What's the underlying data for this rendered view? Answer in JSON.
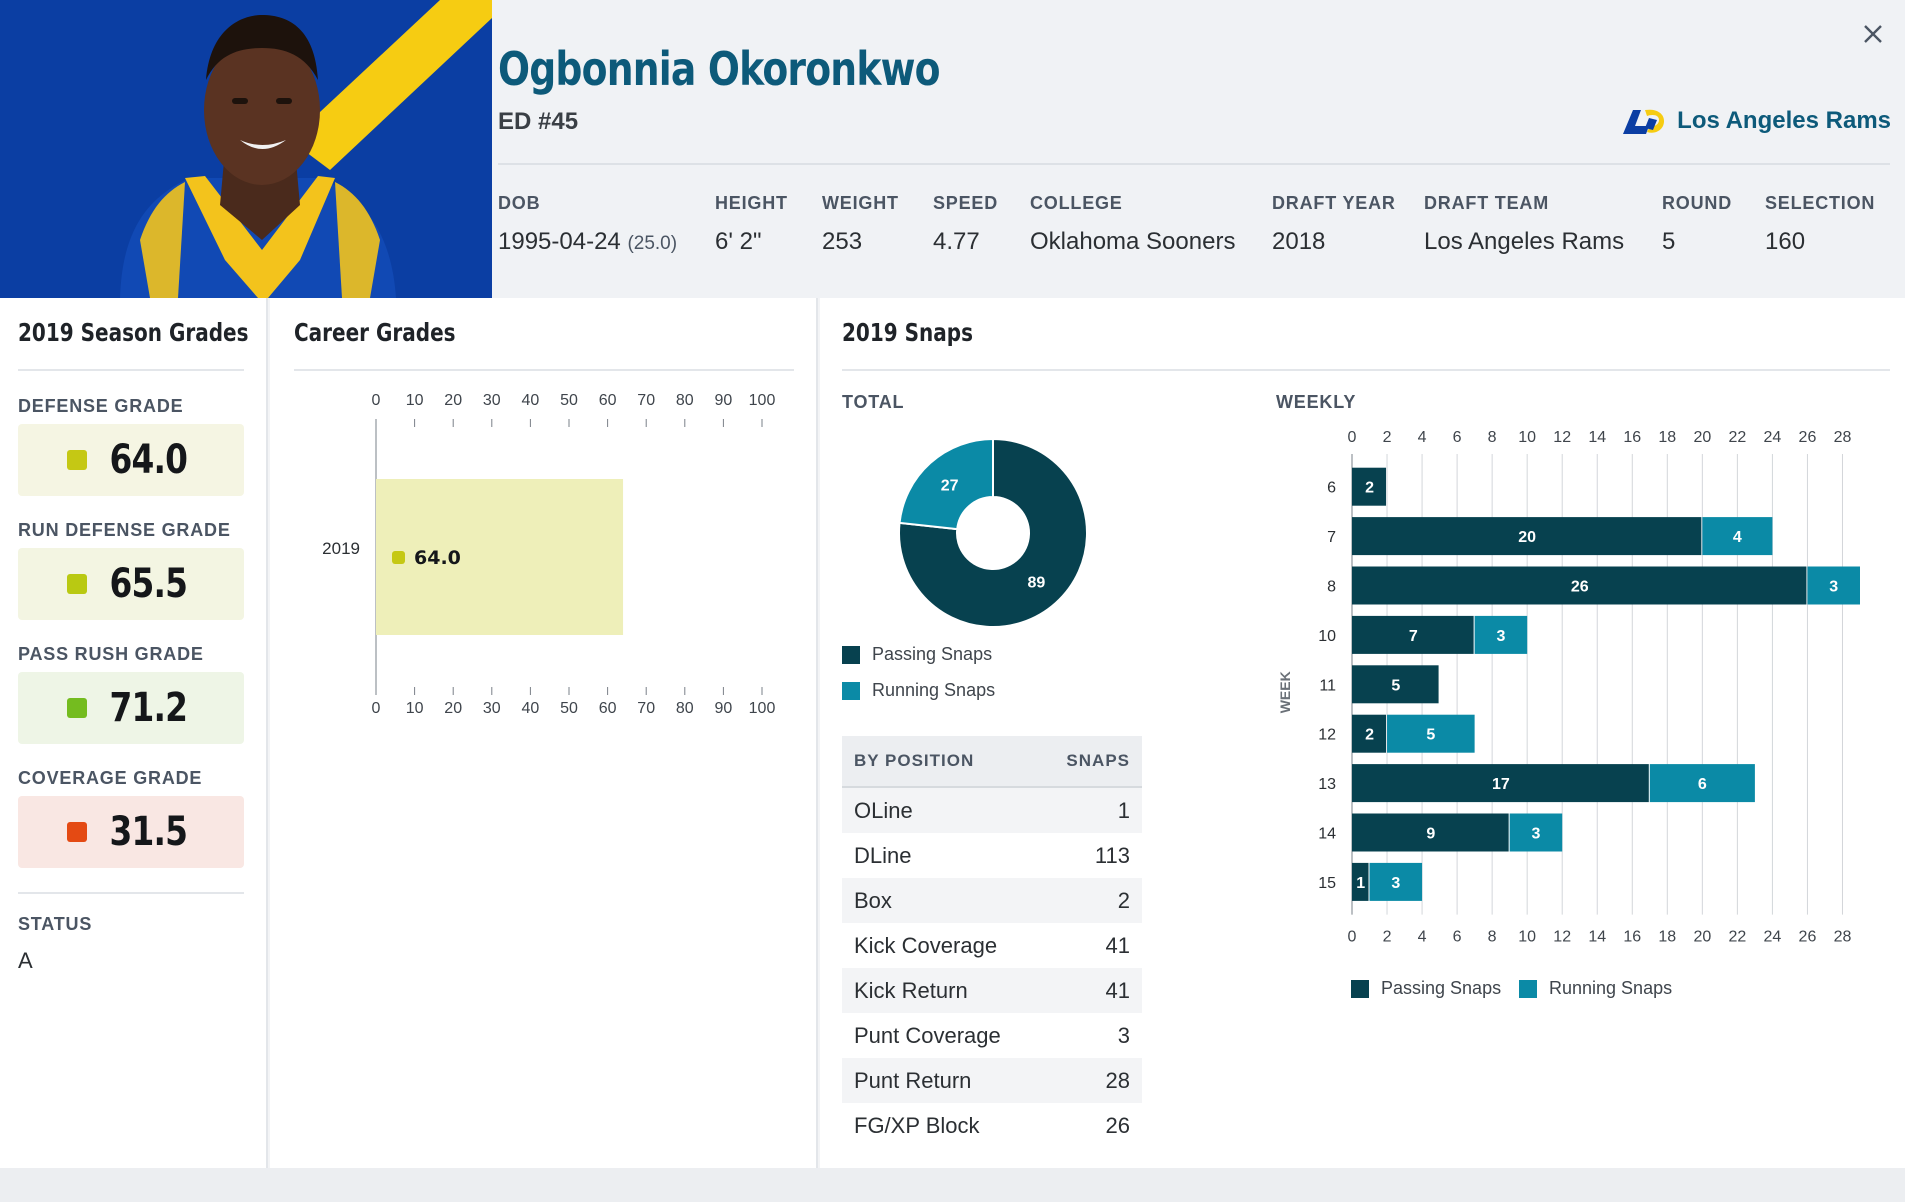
{
  "player": {
    "name": "Ogbonnia Okoronkwo",
    "position": "ED #45"
  },
  "team": {
    "name": "Los Angeles Rams"
  },
  "info": [
    {
      "label": "DOB",
      "value": "1995-04-24",
      "extra": "(25.0)"
    },
    {
      "label": "HEIGHT",
      "value": "6' 2\""
    },
    {
      "label": "WEIGHT",
      "value": "253"
    },
    {
      "label": "SPEED",
      "value": "4.77"
    },
    {
      "label": "COLLEGE",
      "value": "Oklahoma Sooners"
    },
    {
      "label": "DRAFT YEAR",
      "value": "2018"
    },
    {
      "label": "DRAFT TEAM",
      "value": "Los Angeles Rams"
    },
    {
      "label": "ROUND",
      "value": "5"
    },
    {
      "label": "SELECTION",
      "value": "160"
    }
  ],
  "season_grades": {
    "title": "2019 Season Grades",
    "grades": [
      {
        "label": "DEFENSE GRADE",
        "value": "64.0",
        "color": "#c5c814",
        "bg": "#f5f5e3"
      },
      {
        "label": "RUN DEFENSE GRADE",
        "value": "65.5",
        "color": "#b9c912",
        "bg": "#f3f5e2"
      },
      {
        "label": "PASS RUSH GRADE",
        "value": "71.2",
        "color": "#74bc1f",
        "bg": "#eef5e6"
      },
      {
        "label": "COVERAGE GRADE",
        "value": "31.5",
        "color": "#e44a13",
        "bg": "#f9e7e3"
      }
    ],
    "status_label": "STATUS",
    "status_value": "A"
  },
  "career": {
    "title": "Career Grades"
  },
  "snaps": {
    "title": "2019 Snaps",
    "total_label": "TOTAL",
    "weekly_label": "WEEKLY",
    "legend_passing": "Passing Snaps",
    "legend_running": "Running Snaps",
    "table_head_position": "BY POSITION",
    "table_head_snaps": "SNAPS",
    "by_position": [
      {
        "position": "OLine",
        "snaps": "1"
      },
      {
        "position": "DLine",
        "snaps": "113"
      },
      {
        "position": "Box",
        "snaps": "2"
      },
      {
        "position": "Kick Coverage",
        "snaps": "41"
      },
      {
        "position": "Kick Return",
        "snaps": "41"
      },
      {
        "position": "Punt Coverage",
        "snaps": "3"
      },
      {
        "position": "Punt Return",
        "snaps": "28"
      },
      {
        "position": "FG/XP Block",
        "snaps": "26"
      }
    ]
  },
  "colors": {
    "passing": "#07414f",
    "running": "#0b8aa6",
    "career_bar": "#eeefb9",
    "career_dot": "#c5c814"
  },
  "chart_data": [
    {
      "type": "bar",
      "orientation": "horizontal",
      "categories": [
        "2019"
      ],
      "values": [
        64.0
      ],
      "value_labels": [
        "64.0"
      ],
      "xlim": [
        0,
        100
      ],
      "xticks": [
        0,
        10,
        20,
        30,
        40,
        50,
        60,
        70,
        80,
        90,
        100
      ]
    },
    {
      "type": "pie",
      "variant": "donut",
      "labels": [
        "Passing Snaps",
        "Running Snaps"
      ],
      "values": [
        89,
        27
      ]
    },
    {
      "type": "bar",
      "orientation": "horizontal",
      "stacked": true,
      "ylabel": "WEEK",
      "categories": [
        "6",
        "7",
        "8",
        "10",
        "11",
        "12",
        "13",
        "14",
        "15"
      ],
      "series": [
        {
          "name": "Passing Snaps",
          "values": [
            2,
            20,
            26,
            7,
            5,
            2,
            17,
            9,
            1
          ]
        },
        {
          "name": "Running Snaps",
          "values": [
            0,
            4,
            3,
            3,
            0,
            5,
            6,
            3,
            3
          ]
        }
      ],
      "xlim": [
        0,
        29
      ],
      "xticks": [
        0,
        2,
        4,
        6,
        8,
        10,
        12,
        14,
        16,
        18,
        20,
        22,
        24,
        26,
        28
      ],
      "legend": "bottom"
    }
  ]
}
